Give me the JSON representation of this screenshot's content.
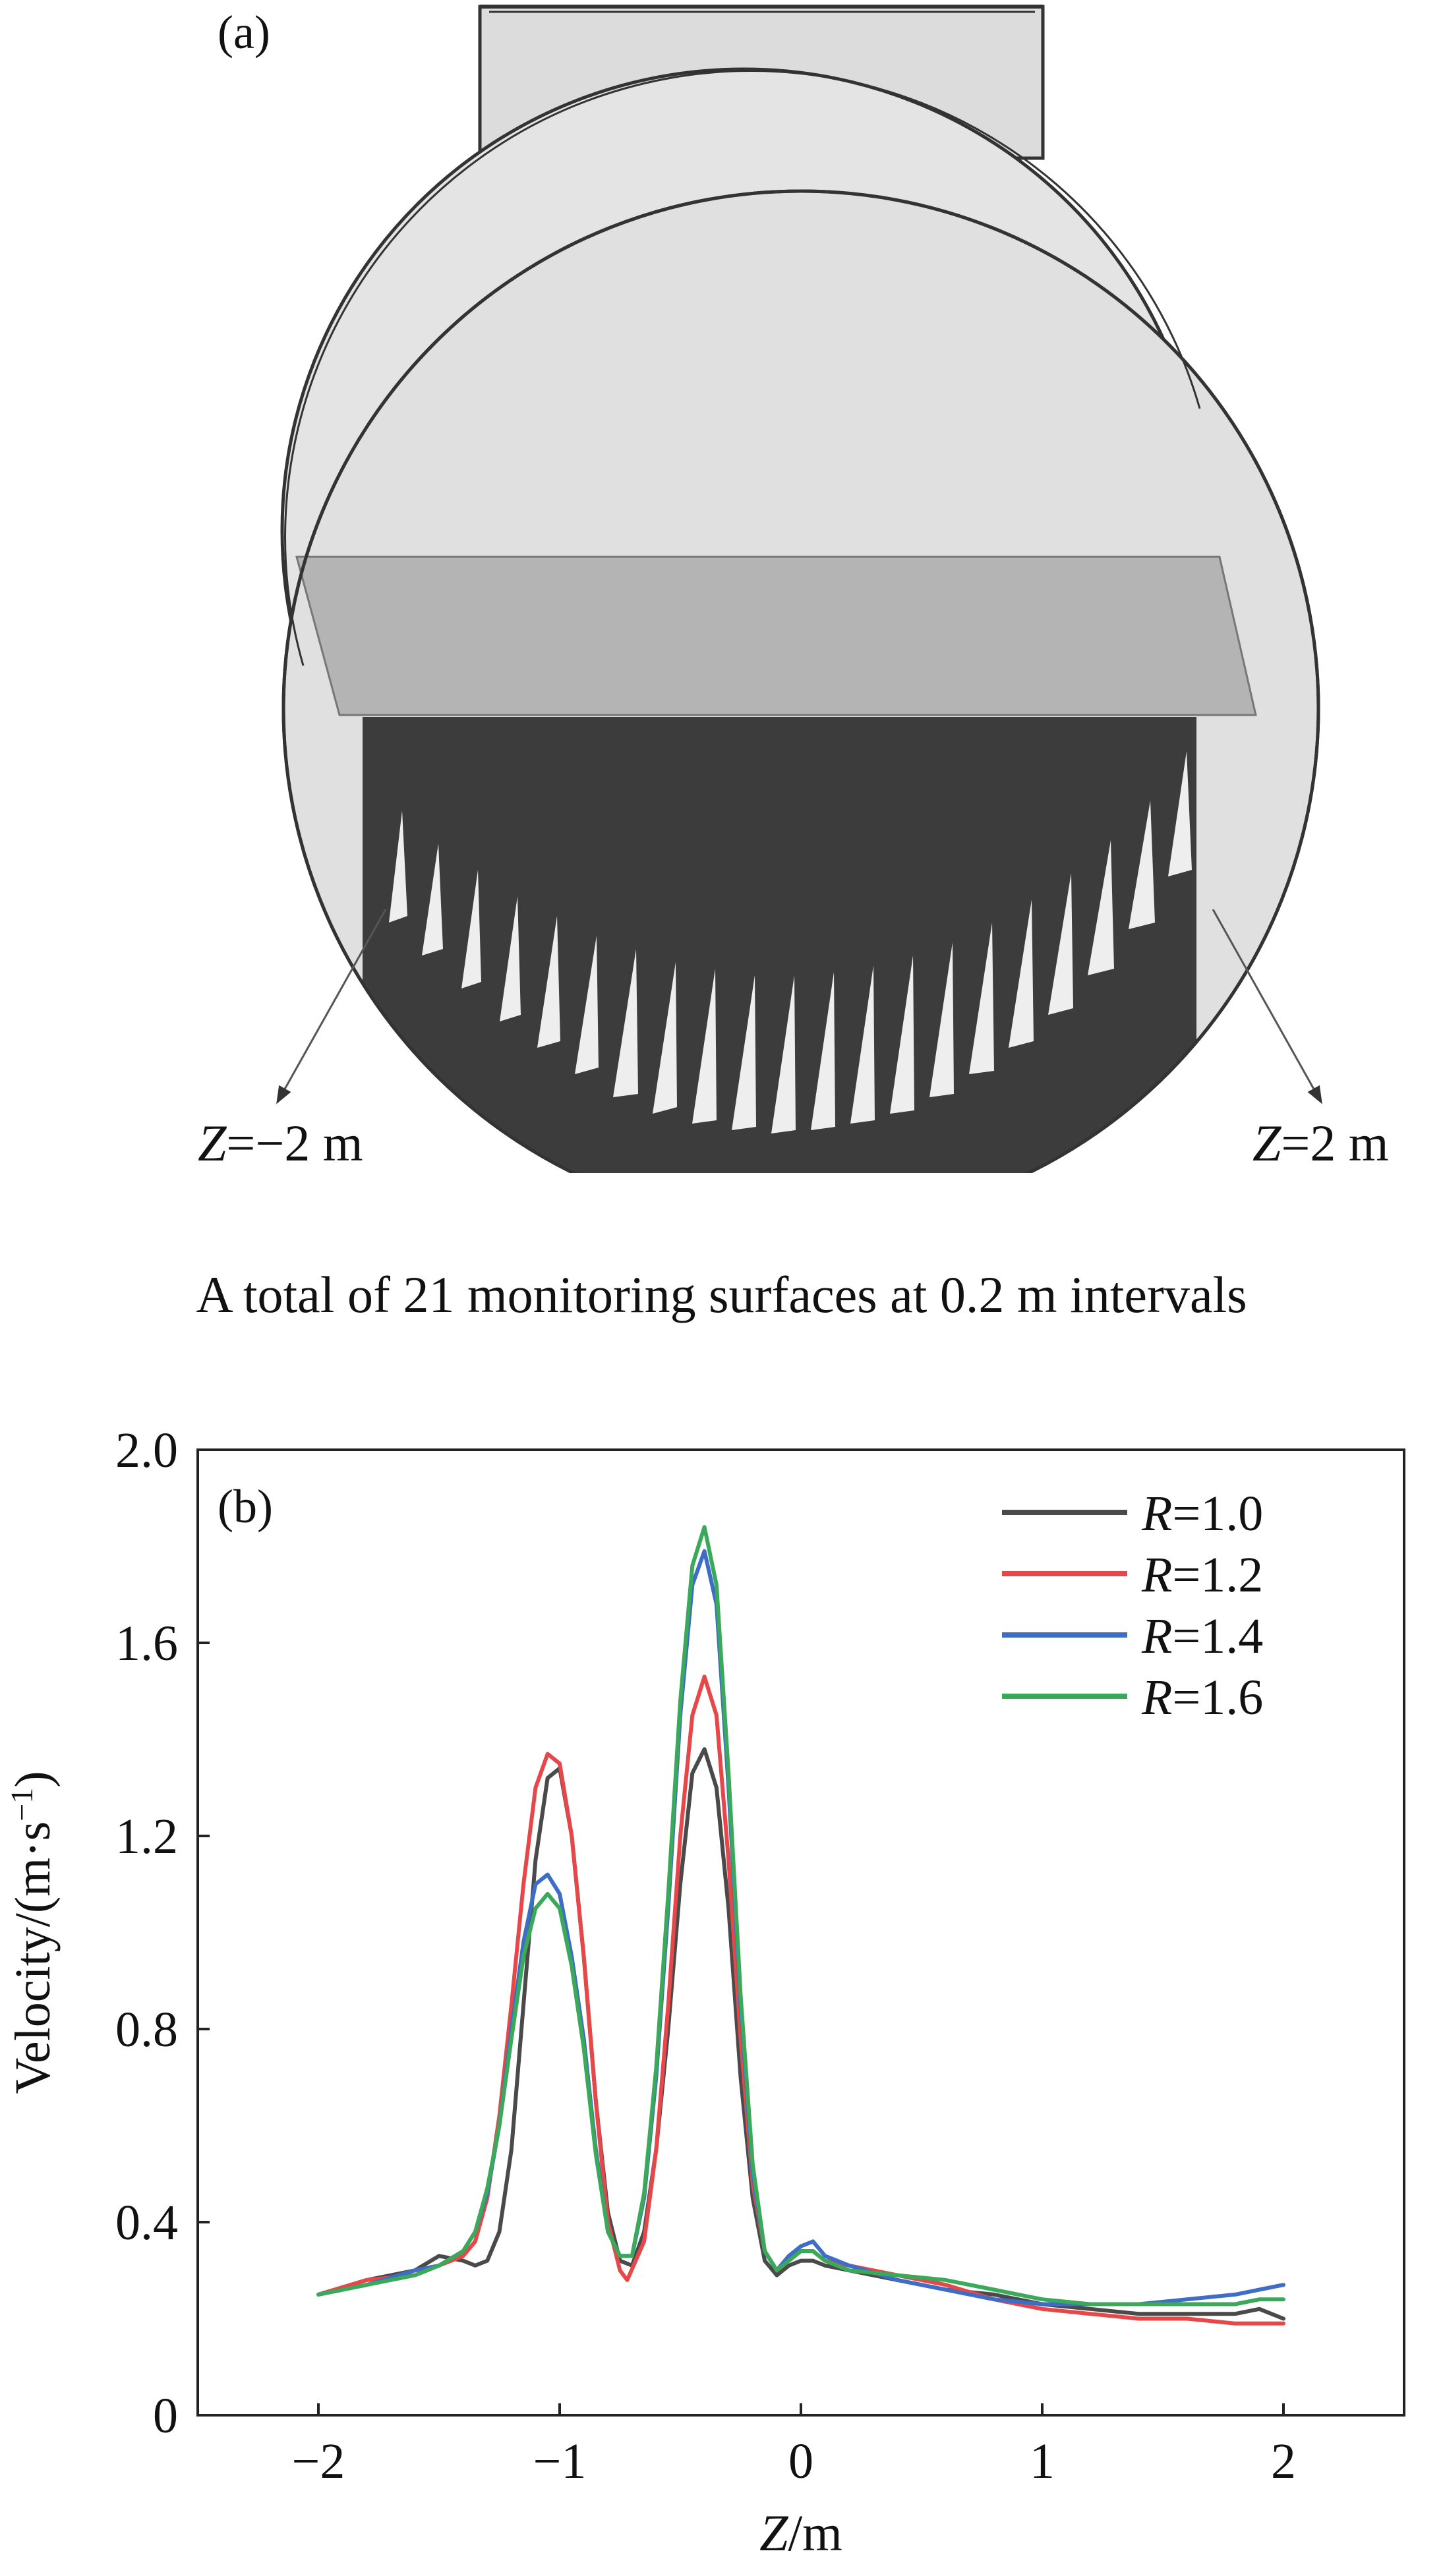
{
  "panel_a": {
    "label": "(a)",
    "left_marker": {
      "var": "Z",
      "rest": "=−2 m"
    },
    "right_marker": {
      "var": "Z",
      "rest": "=2 m"
    },
    "caption": "A total of 21 monitoring surfaces at 0.2 m intervals"
  },
  "chart_data": {
    "type": "line",
    "panel_label": "(b)",
    "xlabel": {
      "var": "Z",
      "rest": "/m"
    },
    "ylabel": "Velocity/(m·s",
    "ylabel_sup": "−1",
    "ylabel_close": ")",
    "xlim": [
      -2.5,
      2.5
    ],
    "ylim": [
      0,
      2.0
    ],
    "xticks": [
      -2,
      -1,
      0,
      1,
      2
    ],
    "xtick_labels": [
      "−2",
      "−1",
      "0",
      "1",
      "2"
    ],
    "yticks": [
      0,
      0.4,
      0.8,
      1.2,
      1.6,
      2.0
    ],
    "ytick_labels": [
      "0",
      "0.4",
      "0.8",
      "1.2",
      "1.6",
      "2.0"
    ],
    "legend_position": "top-right",
    "grid": false,
    "series": [
      {
        "name": "R=1.0",
        "name_var": "R",
        "name_rest": "=1.0",
        "color": "#4a4a4a",
        "x": [
          -2.0,
          -1.8,
          -1.6,
          -1.5,
          -1.4,
          -1.35,
          -1.3,
          -1.25,
          -1.2,
          -1.15,
          -1.1,
          -1.05,
          -1.0,
          -0.95,
          -0.9,
          -0.85,
          -0.8,
          -0.75,
          -0.7,
          -0.65,
          -0.6,
          -0.55,
          -0.5,
          -0.45,
          -0.4,
          -0.35,
          -0.3,
          -0.25,
          -0.2,
          -0.15,
          -0.1,
          -0.05,
          0.0,
          0.05,
          0.1,
          0.2,
          0.4,
          0.6,
          0.8,
          1.0,
          1.2,
          1.4,
          1.6,
          1.8,
          1.9,
          2.0
        ],
        "y": [
          0.25,
          0.28,
          0.3,
          0.33,
          0.32,
          0.31,
          0.32,
          0.38,
          0.55,
          0.85,
          1.15,
          1.32,
          1.34,
          1.2,
          0.95,
          0.65,
          0.42,
          0.32,
          0.31,
          0.38,
          0.55,
          0.8,
          1.1,
          1.33,
          1.38,
          1.3,
          1.05,
          0.7,
          0.45,
          0.32,
          0.29,
          0.31,
          0.32,
          0.32,
          0.31,
          0.3,
          0.28,
          0.26,
          0.25,
          0.23,
          0.22,
          0.21,
          0.21,
          0.21,
          0.22,
          0.2
        ]
      },
      {
        "name": "R=1.2",
        "name_var": "R",
        "name_rest": "=1.2",
        "color": "#e8474a",
        "x": [
          -2.0,
          -1.8,
          -1.6,
          -1.5,
          -1.4,
          -1.35,
          -1.3,
          -1.25,
          -1.2,
          -1.15,
          -1.1,
          -1.05,
          -1.0,
          -0.95,
          -0.9,
          -0.85,
          -0.8,
          -0.75,
          -0.72,
          -0.65,
          -0.6,
          -0.55,
          -0.5,
          -0.45,
          -0.4,
          -0.35,
          -0.3,
          -0.25,
          -0.2,
          -0.15,
          -0.1,
          -0.05,
          0.0,
          0.05,
          0.1,
          0.2,
          0.4,
          0.6,
          0.8,
          1.0,
          1.2,
          1.4,
          1.6,
          1.8,
          1.9,
          2.0
        ],
        "y": [
          0.25,
          0.28,
          0.29,
          0.31,
          0.33,
          0.36,
          0.45,
          0.62,
          0.85,
          1.1,
          1.3,
          1.37,
          1.35,
          1.2,
          0.95,
          0.65,
          0.4,
          0.3,
          0.28,
          0.36,
          0.55,
          0.85,
          1.2,
          1.45,
          1.53,
          1.45,
          1.15,
          0.78,
          0.48,
          0.34,
          0.3,
          0.33,
          0.34,
          0.34,
          0.32,
          0.31,
          0.29,
          0.27,
          0.24,
          0.22,
          0.21,
          0.2,
          0.2,
          0.19,
          0.19,
          0.19
        ]
      },
      {
        "name": "R=1.4",
        "name_var": "R",
        "name_rest": "=1.4",
        "color": "#3d6dc6",
        "x": [
          -2.0,
          -1.8,
          -1.6,
          -1.5,
          -1.4,
          -1.35,
          -1.3,
          -1.25,
          -1.2,
          -1.15,
          -1.1,
          -1.05,
          -1.0,
          -0.95,
          -0.9,
          -0.85,
          -0.8,
          -0.75,
          -0.7,
          -0.65,
          -0.6,
          -0.55,
          -0.5,
          -0.45,
          -0.4,
          -0.35,
          -0.3,
          -0.25,
          -0.2,
          -0.15,
          -0.1,
          -0.05,
          0.0,
          0.05,
          0.1,
          0.2,
          0.4,
          0.6,
          0.8,
          1.0,
          1.2,
          1.4,
          1.6,
          1.8,
          1.9,
          2.0
        ],
        "y": [
          0.25,
          0.27,
          0.3,
          0.31,
          0.34,
          0.38,
          0.46,
          0.6,
          0.8,
          0.98,
          1.1,
          1.12,
          1.08,
          0.95,
          0.78,
          0.55,
          0.38,
          0.33,
          0.33,
          0.45,
          0.7,
          1.05,
          1.45,
          1.72,
          1.79,
          1.68,
          1.3,
          0.85,
          0.5,
          0.34,
          0.3,
          0.33,
          0.35,
          0.36,
          0.33,
          0.31,
          0.28,
          0.26,
          0.24,
          0.23,
          0.23,
          0.23,
          0.24,
          0.25,
          0.26,
          0.27
        ]
      },
      {
        "name": "R=1.6",
        "name_var": "R",
        "name_rest": "=1.6",
        "color": "#3aa95a",
        "x": [
          -2.0,
          -1.8,
          -1.6,
          -1.5,
          -1.4,
          -1.35,
          -1.3,
          -1.25,
          -1.2,
          -1.15,
          -1.1,
          -1.05,
          -1.0,
          -0.95,
          -0.9,
          -0.85,
          -0.8,
          -0.75,
          -0.7,
          -0.65,
          -0.6,
          -0.55,
          -0.5,
          -0.45,
          -0.4,
          -0.35,
          -0.3,
          -0.25,
          -0.2,
          -0.15,
          -0.1,
          -0.05,
          0.0,
          0.05,
          0.1,
          0.2,
          0.4,
          0.6,
          0.8,
          1.0,
          1.2,
          1.4,
          1.6,
          1.8,
          1.9,
          2.0
        ],
        "y": [
          0.25,
          0.27,
          0.29,
          0.31,
          0.34,
          0.38,
          0.47,
          0.6,
          0.78,
          0.95,
          1.05,
          1.08,
          1.05,
          0.93,
          0.76,
          0.54,
          0.38,
          0.33,
          0.33,
          0.46,
          0.72,
          1.08,
          1.48,
          1.76,
          1.84,
          1.72,
          1.33,
          0.87,
          0.52,
          0.34,
          0.3,
          0.32,
          0.34,
          0.34,
          0.32,
          0.3,
          0.29,
          0.28,
          0.26,
          0.24,
          0.23,
          0.23,
          0.23,
          0.23,
          0.24,
          0.24
        ]
      }
    ]
  }
}
